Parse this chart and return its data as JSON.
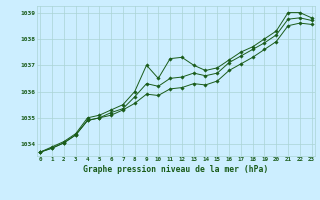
{
  "series1": {
    "x": [
      0,
      1,
      2,
      3,
      4,
      5,
      6,
      7,
      8,
      9,
      10,
      11,
      12,
      13,
      14,
      15,
      16,
      17,
      18,
      19,
      20,
      21,
      22,
      23
    ],
    "y": [
      1033.7,
      1033.9,
      1034.1,
      1034.4,
      1035.0,
      1035.1,
      1035.3,
      1035.5,
      1036.0,
      1037.0,
      1036.5,
      1037.25,
      1037.3,
      1037.0,
      1036.8,
      1036.9,
      1037.2,
      1037.5,
      1037.7,
      1038.0,
      1038.3,
      1039.0,
      1039.0,
      1038.8
    ]
  },
  "series2": {
    "x": [
      0,
      1,
      2,
      3,
      4,
      5,
      6,
      7,
      8,
      9,
      10,
      11,
      12,
      13,
      14,
      15,
      16,
      17,
      18,
      19,
      20,
      21,
      22,
      23
    ],
    "y": [
      1033.7,
      1033.85,
      1034.05,
      1034.35,
      1034.9,
      1035.0,
      1035.2,
      1035.35,
      1035.8,
      1036.3,
      1036.2,
      1036.5,
      1036.55,
      1036.7,
      1036.6,
      1036.7,
      1037.1,
      1037.35,
      1037.6,
      1037.85,
      1038.15,
      1038.75,
      1038.8,
      1038.7
    ]
  },
  "series3": {
    "x": [
      0,
      1,
      2,
      3,
      4,
      5,
      6,
      7,
      8,
      9,
      10,
      11,
      12,
      13,
      14,
      15,
      16,
      17,
      18,
      19,
      20,
      21,
      22,
      23
    ],
    "y": [
      1033.7,
      1033.85,
      1034.05,
      1034.35,
      1034.9,
      1035.0,
      1035.1,
      1035.3,
      1035.55,
      1035.9,
      1035.85,
      1036.1,
      1036.15,
      1036.3,
      1036.25,
      1036.4,
      1036.8,
      1037.05,
      1037.3,
      1037.6,
      1037.9,
      1038.5,
      1038.6,
      1038.55
    ]
  },
  "line_color": "#1a5c1a",
  "marker_color": "#1a5c1a",
  "bg_color": "#cceeff",
  "grid_color": "#aad4d4",
  "xlabel": "Graphe pression niveau de la mer (hPa)",
  "ylabel_ticks": [
    1034,
    1035,
    1036,
    1037,
    1038,
    1039
  ],
  "xticks": [
    0,
    1,
    2,
    3,
    4,
    5,
    6,
    7,
    8,
    9,
    10,
    11,
    12,
    13,
    14,
    15,
    16,
    17,
    18,
    19,
    20,
    21,
    22,
    23
  ],
  "xlim": [
    -0.3,
    23.3
  ],
  "ylim": [
    1033.55,
    1039.25
  ]
}
